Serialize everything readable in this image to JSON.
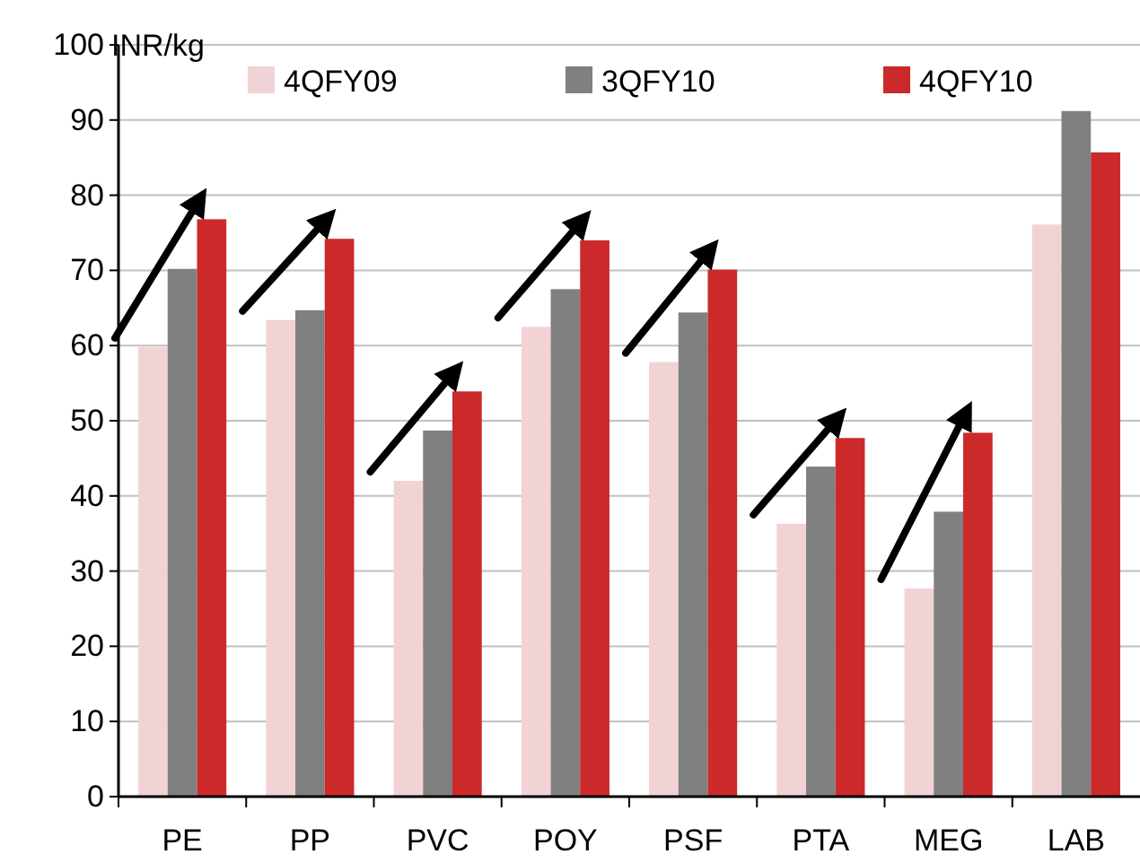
{
  "chart_data": {
    "type": "bar",
    "ylabel": "INR/kg",
    "categories": [
      "PE",
      "PP",
      "PVC",
      "POY",
      "PSF",
      "PTA",
      "MEG",
      "LAB"
    ],
    "series": [
      {
        "name": "4QFY09",
        "color": "#f2d3d5",
        "values": [
          59.8,
          63.4,
          42.0,
          62.5,
          57.8,
          36.3,
          27.7,
          76.1
        ]
      },
      {
        "name": "3QFY10",
        "color": "#808080",
        "values": [
          70.2,
          64.7,
          48.7,
          67.5,
          64.4,
          43.9,
          37.9,
          91.2
        ]
      },
      {
        "name": "4QFY10",
        "color": "#cc292b",
        "values": [
          76.8,
          74.2,
          53.9,
          74.0,
          70.1,
          47.7,
          48.4,
          85.7
        ]
      }
    ],
    "ylim": [
      0,
      100
    ],
    "yticks": [
      0,
      10,
      20,
      30,
      40,
      50,
      60,
      70,
      80,
      90,
      100
    ],
    "grid": "y",
    "legend": "top"
  }
}
